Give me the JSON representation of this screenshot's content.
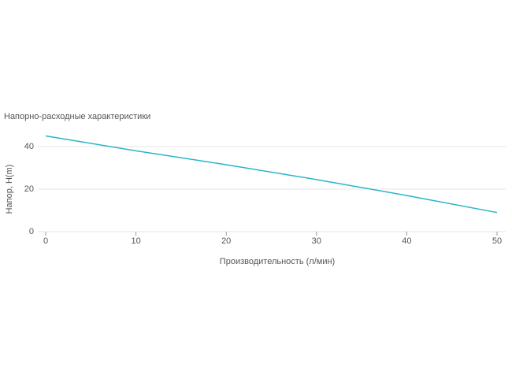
{
  "chart_data": {
    "type": "line",
    "title": "Напорно-расходные характеристики",
    "x_label": "Производительность (л/мин)",
    "y_label": "Напор, H(m)",
    "x": [
      0,
      10,
      20,
      30,
      40,
      50
    ],
    "series": [
      {
        "color": "#2ab4c8",
        "values": [
          45,
          38,
          31.5,
          24.5,
          17,
          9
        ]
      }
    ],
    "xlim": [
      0,
      50
    ],
    "xticks": [
      0,
      10,
      20,
      30,
      40,
      50
    ],
    "ylim": [
      0,
      50
    ],
    "yticks": [
      0,
      20,
      40
    ],
    "grid": true
  }
}
